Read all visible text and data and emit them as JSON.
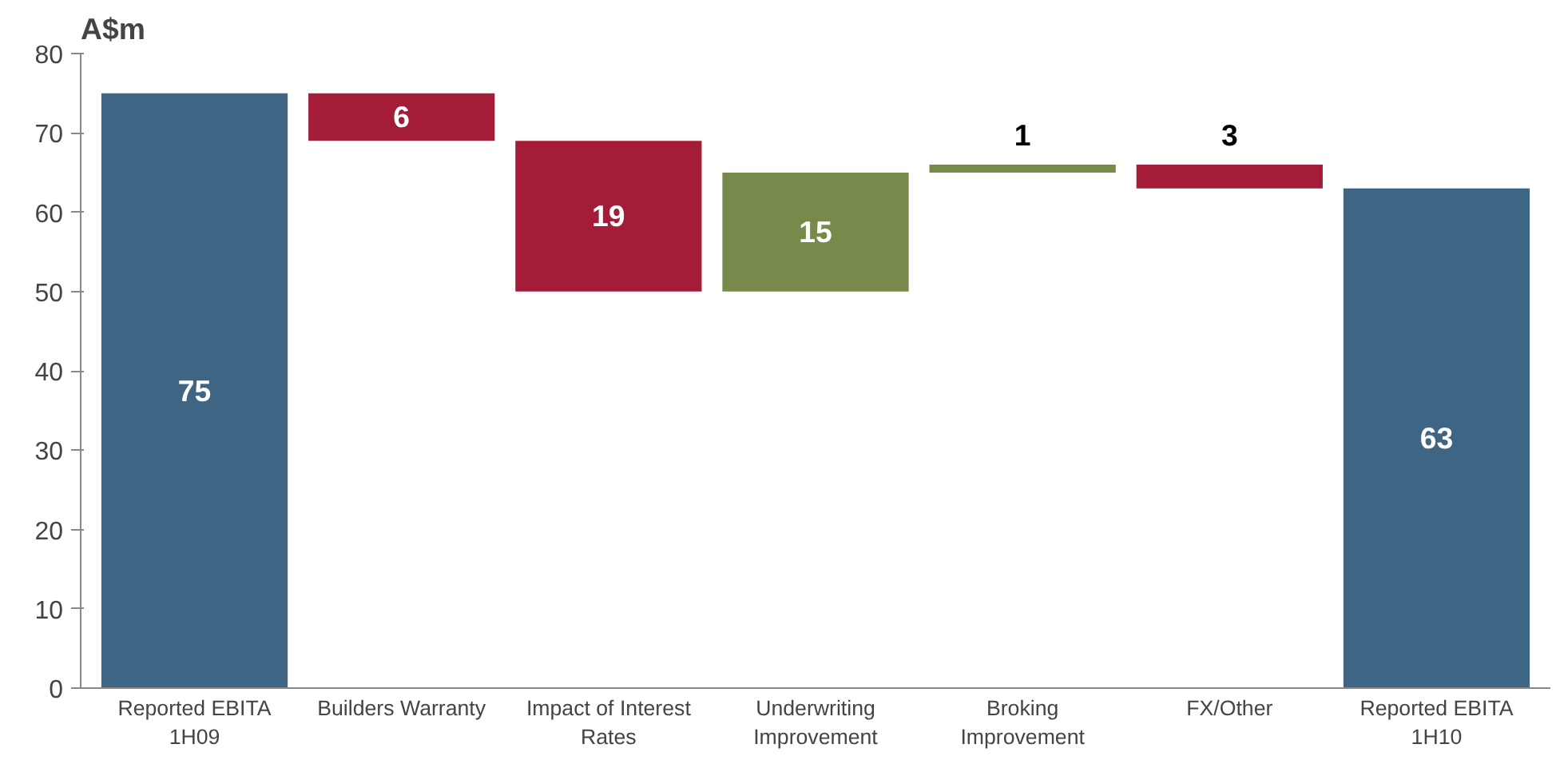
{
  "chart_data": {
    "type": "bar",
    "ylabel": "A$m",
    "categories": [
      "Reported EBITA 1H09",
      "Builders Warranty",
      "Impact of Interest Rates",
      "Underwriting Improvement",
      "Broking Improvement",
      "FX/Other",
      "Reported EBITA 1H10"
    ],
    "values": [
      75,
      6,
      19,
      15,
      1,
      3,
      63
    ],
    "base": [
      0,
      69,
      50,
      50,
      65,
      63,
      0
    ],
    "colors": [
      "#3f6584",
      "#a51c38",
      "#a51c38",
      "#77894b",
      "#77894b",
      "#a51c38",
      "#3f6584"
    ],
    "ylim": [
      0,
      80
    ],
    "yticks": [
      0,
      10,
      20,
      30,
      40,
      50,
      60,
      70,
      80
    ],
    "data_labels": true,
    "grid": false
  }
}
